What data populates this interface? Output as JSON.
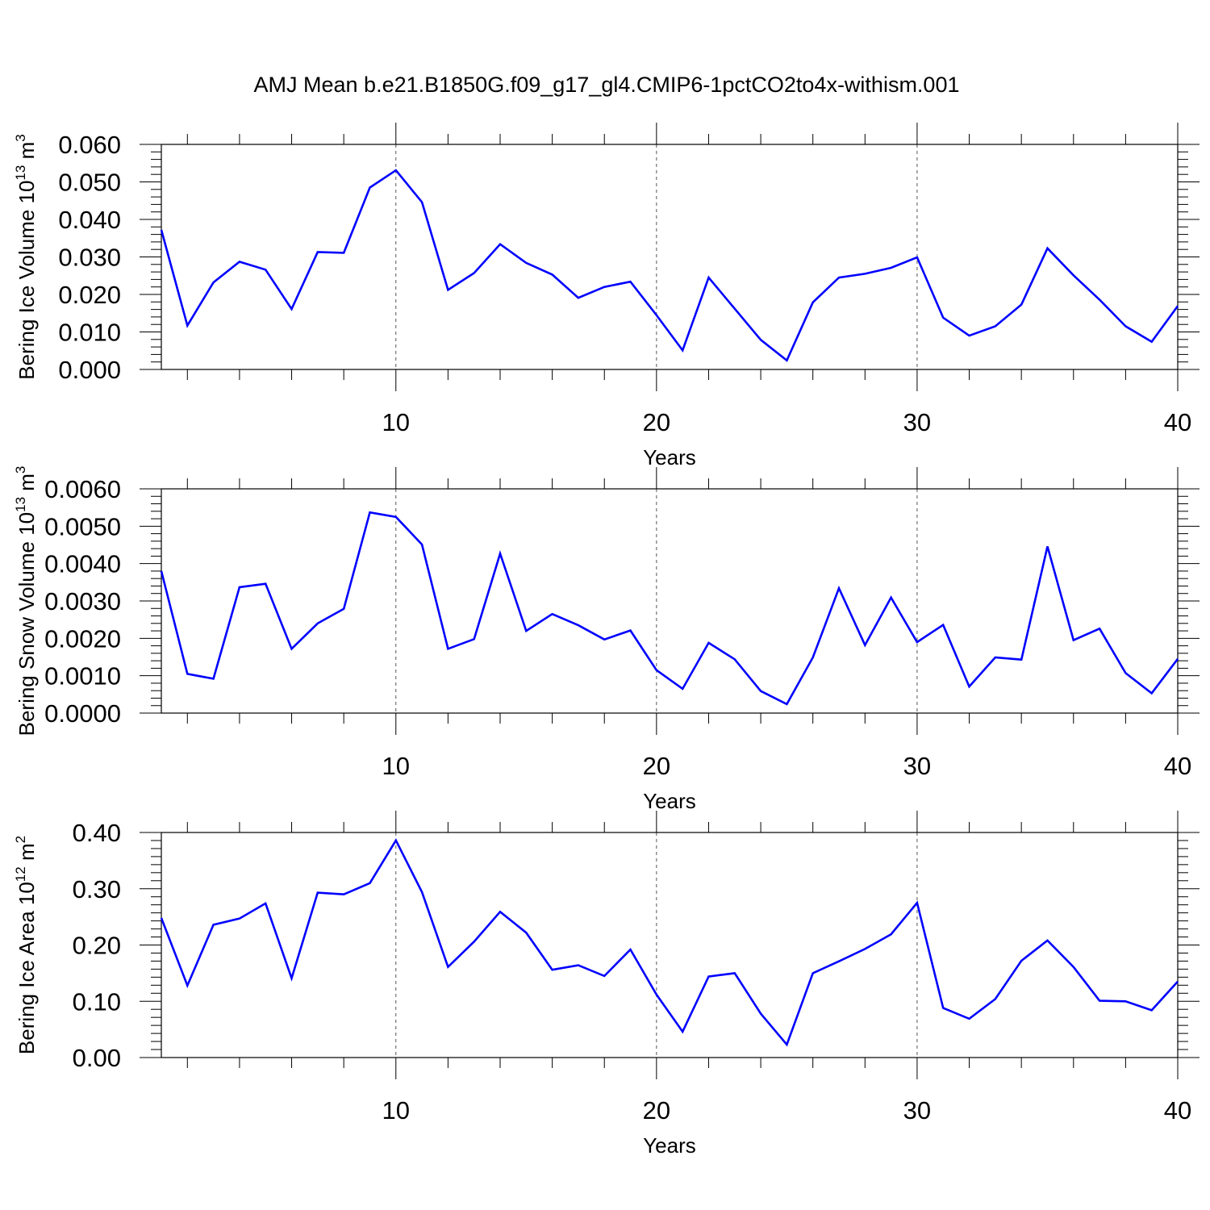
{
  "figure": {
    "title": "AMJ Mean b.e21.B1850G.f09_g17_gl4.CMIP6-1pctCO2to4x-withism.001"
  },
  "style": {
    "line_color": "#0000ff",
    "axis_color": "#000000",
    "grid_color": "#555555"
  },
  "chart_data": [
    {
      "type": "line",
      "ylabel": "Bering Ice Volume 10",
      "ylabel_sup": "13",
      "ylabel_unit": " m",
      "ylabel_unit_sup": "3",
      "xlabel": "Years",
      "xlim": [
        1,
        40
      ],
      "ylim": [
        0,
        0.06
      ],
      "x_ticks": [
        10,
        20,
        30,
        40
      ],
      "y_ticks": [
        0,
        0.01,
        0.02,
        0.03,
        0.04,
        0.05,
        0.06
      ],
      "y_tick_labels": [
        "0.000",
        "0.010",
        "0.020",
        "0.030",
        "0.040",
        "0.050",
        "0.060"
      ],
      "grid": "vertical dashed at major x ticks",
      "series": [
        {
          "x": [
            1,
            2,
            3,
            4,
            5,
            6,
            7,
            8,
            9,
            10,
            11,
            12,
            13,
            14,
            15,
            16,
            17,
            18,
            19,
            20,
            21,
            22,
            23,
            24,
            25,
            26,
            27,
            28,
            29,
            30,
            31,
            32,
            33,
            34,
            35,
            36,
            37,
            38,
            39,
            40
          ],
          "values": [
            0.0372,
            0.0117,
            0.0232,
            0.0287,
            0.0266,
            0.0161,
            0.0313,
            0.0311,
            0.0485,
            0.0531,
            0.0446,
            0.0212,
            0.0257,
            0.0334,
            0.0284,
            0.0253,
            0.0191,
            0.022,
            0.0234,
            0.0145,
            0.0051,
            0.0245,
            0.0162,
            0.0079,
            0.0024,
            0.0179,
            0.0245,
            0.0255,
            0.0271,
            0.0299,
            0.0138,
            0.009,
            0.0115,
            0.0173,
            0.0323,
            0.0251,
            0.0186,
            0.0115,
            0.0074,
            0.0169
          ]
        }
      ]
    },
    {
      "type": "line",
      "ylabel": "Bering Snow Volume 10",
      "ylabel_sup": "13",
      "ylabel_unit": " m",
      "ylabel_unit_sup": "3",
      "xlabel": "Years",
      "xlim": [
        1,
        40
      ],
      "ylim": [
        0,
        0.006
      ],
      "x_ticks": [
        10,
        20,
        30,
        40
      ],
      "y_ticks": [
        0,
        0.001,
        0.002,
        0.003,
        0.004,
        0.005,
        0.006
      ],
      "y_tick_labels": [
        "0.0000",
        "0.0010",
        "0.0020",
        "0.0030",
        "0.0040",
        "0.0050",
        "0.0060"
      ],
      "grid": "vertical dashed at major x ticks",
      "series": [
        {
          "x": [
            1,
            2,
            3,
            4,
            5,
            6,
            7,
            8,
            9,
            10,
            11,
            12,
            13,
            14,
            15,
            16,
            17,
            18,
            19,
            20,
            21,
            22,
            23,
            24,
            25,
            26,
            27,
            28,
            29,
            30,
            31,
            32,
            33,
            34,
            35,
            36,
            37,
            38,
            39,
            40
          ],
          "values": [
            0.0038,
            0.00105,
            0.00092,
            0.00337,
            0.00346,
            0.00172,
            0.0024,
            0.00279,
            0.00537,
            0.00525,
            0.00451,
            0.00172,
            0.00198,
            0.00427,
            0.0022,
            0.00265,
            0.00235,
            0.00197,
            0.00221,
            0.00115,
            0.00065,
            0.00188,
            0.00144,
            0.00059,
            0.00024,
            0.00149,
            0.00334,
            0.00182,
            0.00309,
            0.0019,
            0.00236,
            0.00071,
            0.00149,
            0.00143,
            0.00446,
            0.00195,
            0.00226,
            0.00107,
            0.00053,
            0.00145
          ]
        }
      ]
    },
    {
      "type": "line",
      "ylabel": "Bering Ice Area 10",
      "ylabel_sup": "12",
      "ylabel_unit": " m",
      "ylabel_unit_sup": "2",
      "xlabel": "Years",
      "xlim": [
        1,
        40
      ],
      "ylim": [
        0,
        0.4
      ],
      "x_ticks": [
        10,
        20,
        30,
        40
      ],
      "y_ticks": [
        0,
        0.1,
        0.2,
        0.3,
        0.4
      ],
      "y_tick_labels": [
        "0.00",
        "0.10",
        "0.20",
        "0.30",
        "0.40"
      ],
      "grid": "vertical dashed at major x ticks",
      "series": [
        {
          "x": [
            1,
            2,
            3,
            4,
            5,
            6,
            7,
            8,
            9,
            10,
            11,
            12,
            13,
            14,
            15,
            16,
            17,
            18,
            19,
            20,
            21,
            22,
            23,
            24,
            25,
            26,
            27,
            28,
            29,
            30,
            31,
            32,
            33,
            34,
            35,
            36,
            37,
            38,
            39,
            40
          ],
          "values": [
            0.248,
            0.128,
            0.236,
            0.247,
            0.274,
            0.141,
            0.293,
            0.29,
            0.31,
            0.386,
            0.294,
            0.161,
            0.206,
            0.259,
            0.222,
            0.156,
            0.164,
            0.145,
            0.192,
            0.112,
            0.046,
            0.144,
            0.15,
            0.078,
            0.023,
            0.15,
            0.171,
            0.193,
            0.219,
            0.275,
            0.088,
            0.069,
            0.104,
            0.172,
            0.208,
            0.161,
            0.101,
            0.1,
            0.084,
            0.135
          ]
        }
      ]
    }
  ]
}
